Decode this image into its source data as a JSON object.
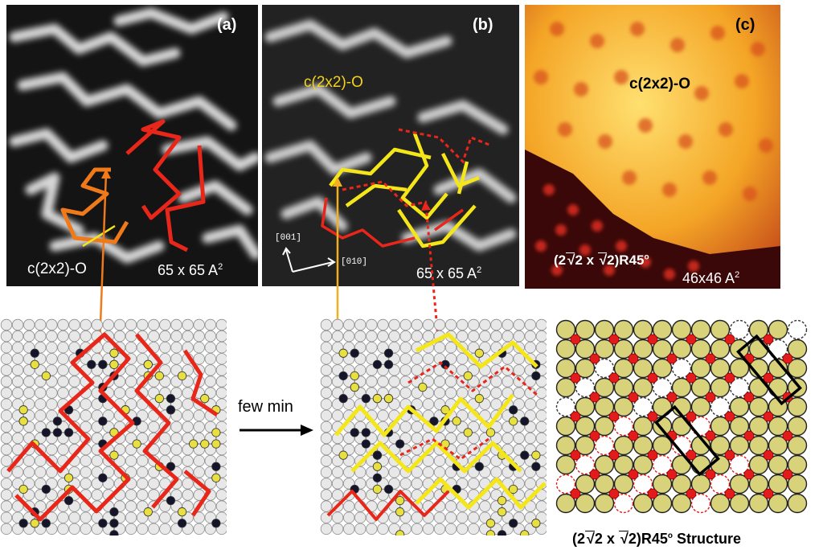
{
  "panels": {
    "a": {
      "letter": "(a)",
      "phase_label": "c(2x2)-O",
      "scale": "65 x 65 A",
      "scale_exp": "2"
    },
    "b": {
      "letter": "(b)",
      "phase_label": "c(2x2)-O",
      "scale": "65 x 65 A",
      "scale_exp": "2",
      "dir1": "[001]",
      "dir2": "[010]"
    },
    "c": {
      "letter": "(c)",
      "phase_label": "c(2x2)-O",
      "structure_pre": "(2",
      "structure_mid": "2 x ",
      "structure_post": "2)R45",
      "structure_deg": "o",
      "scale": "46x46 A",
      "scale_exp": "2"
    }
  },
  "transition_label": "few min",
  "caption": {
    "pre": "(2",
    "mid": "2 x ",
    "post": "2)R45",
    "deg": "o",
    "tail": " Structure"
  },
  "colors": {
    "red_chain": "#e8261a",
    "yellow_chain": "#f5e61a",
    "orange": "#f07a1a",
    "dark_atom": "#14142a",
    "oxygen": "#e31b1b",
    "metal": "#d8d27a"
  }
}
